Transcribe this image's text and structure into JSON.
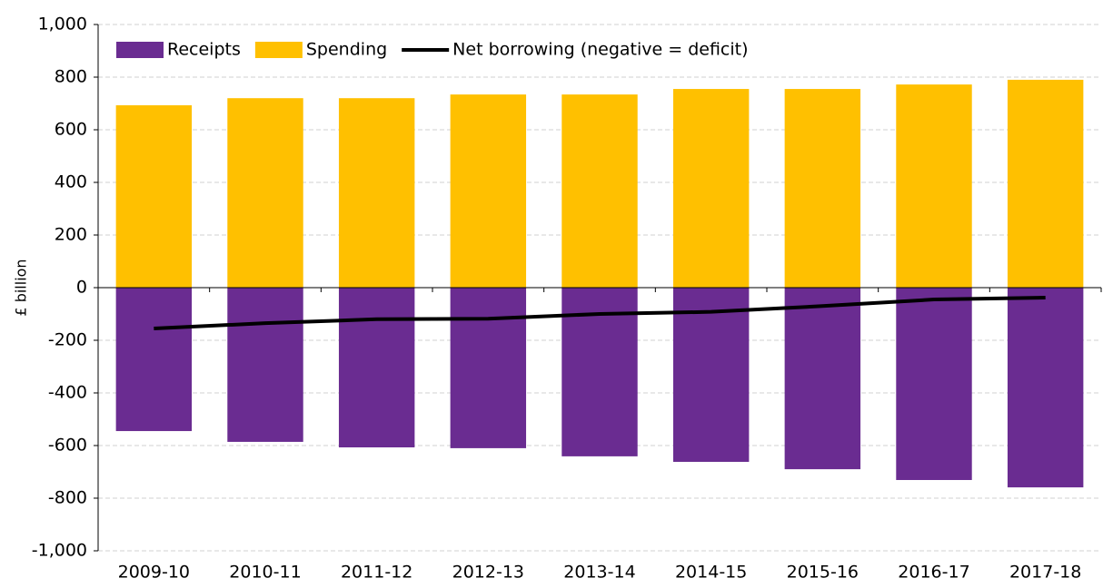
{
  "chart_data": {
    "type": "bar",
    "y_label": "£ billion",
    "categories": [
      "2009-10",
      "2010-11",
      "2011-12",
      "2012-13",
      "2013-14",
      "2014-15",
      "2015-16",
      "2016-17",
      "2017-18"
    ],
    "series": [
      {
        "name": "Receipts",
        "type": "bar",
        "color": "#6a2c91",
        "values": [
          -545,
          -586,
          -607,
          -610,
          -641,
          -662,
          -690,
          -731,
          -759
        ]
      },
      {
        "name": "Spending",
        "type": "bar",
        "color": "#ffc000",
        "values": [
          693,
          720,
          720,
          734,
          734,
          755,
          755,
          772,
          790
        ]
      },
      {
        "name": "Net borrowing (negative = deficit)",
        "type": "line",
        "color": "#000000",
        "values": [
          -155,
          -135,
          -120,
          -118,
          -100,
          -92,
          -70,
          -45,
          -38
        ]
      }
    ],
    "ylim": [
      -1000,
      1000
    ],
    "yticks": [
      {
        "value": -1000,
        "label": "-1,000"
      },
      -800,
      -600,
      -400,
      -200,
      0,
      200,
      400,
      600,
      800,
      {
        "value": 1000,
        "label": "1,000"
      }
    ],
    "grid": true,
    "legend": "top-left"
  }
}
